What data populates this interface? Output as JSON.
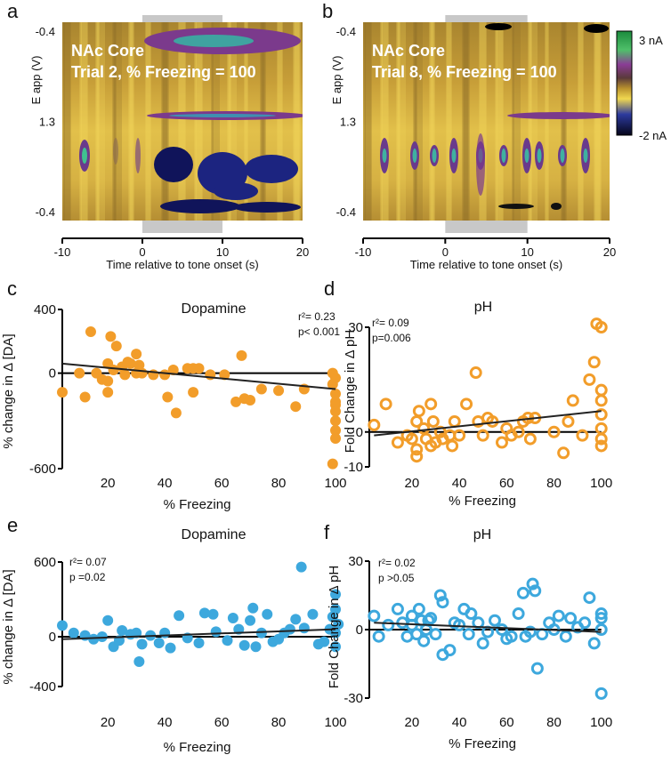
{
  "chart_data": [
    {
      "type": "heatmap",
      "panel": "a",
      "title_lines": [
        "NAc Core",
        "Trial 2, % Freezing = 100"
      ],
      "ylabel": "E app (V)",
      "ytick_labels": [
        "-0.4",
        "1.3",
        "-0.4"
      ],
      "xlabel": "Time relative to tone onset (s)",
      "xlim": [
        -10,
        20
      ],
      "xticks": [
        -10,
        0,
        10,
        20
      ],
      "tone": [
        0,
        10
      ]
    },
    {
      "type": "heatmap",
      "panel": "b",
      "title_lines": [
        "NAc Core",
        "Trial 8, % Freezing = 100"
      ],
      "ylabel": "E app (V)",
      "ytick_labels": [
        "-0.4",
        "1.3",
        "-0.4"
      ],
      "xlabel": "Time relative to tone onset (s)",
      "xlim": [
        -10,
        20
      ],
      "xticks": [
        -10,
        0,
        10,
        20
      ],
      "tone": [
        0,
        10
      ],
      "colorbar_labels": [
        "3 nA",
        "-2 nA"
      ]
    },
    {
      "type": "scatter",
      "panel": "c",
      "title": "Dopamine",
      "stats": [
        "r²= 0.23",
        "p< 0.001"
      ],
      "ylabel": "% change in Δ [DA]",
      "xlabel": "% Freezing",
      "color": "#f29d2a",
      "marker": "filled",
      "xlim": [
        4,
        105
      ],
      "ylim": [
        -600,
        400
      ],
      "xticks": [
        20,
        40,
        60,
        80,
        100
      ],
      "yticks": [
        -600,
        0,
        400
      ],
      "x": [
        4,
        10,
        12,
        14,
        16,
        18,
        20,
        20,
        20,
        21,
        22,
        23,
        25,
        26,
        27,
        28,
        30,
        30,
        31,
        32,
        36,
        40,
        41,
        43,
        44,
        48,
        50,
        50,
        52,
        56,
        61,
        65,
        67,
        68,
        70,
        74,
        80,
        86,
        89,
        99,
        99,
        100,
        100,
        100,
        100,
        100,
        100,
        100,
        100,
        99
      ],
      "values": [
        -120,
        0,
        -150,
        260,
        0,
        -40,
        -50,
        -120,
        60,
        230,
        20,
        170,
        40,
        -10,
        70,
        60,
        0,
        120,
        50,
        0,
        -10,
        -10,
        -150,
        20,
        -250,
        30,
        30,
        -120,
        30,
        -10,
        -10,
        -180,
        110,
        -160,
        -170,
        -100,
        -110,
        -210,
        -100,
        0,
        -70,
        -30,
        -130,
        -180,
        -200,
        -240,
        -300,
        -360,
        -410,
        -570
      ],
      "fit": {
        "x": [
          4,
          100
        ],
        "y": [
          60,
          -100
        ]
      }
    },
    {
      "type": "scatter",
      "panel": "d",
      "title": "pH",
      "stats": [
        "r²= 0.09",
        "p=0.006"
      ],
      "ylabel": "Fold Change in Δ pH",
      "xlabel": "% Freezing",
      "color": "#f29d2a",
      "marker": "open",
      "xlim": [
        2,
        105
      ],
      "ylim": [
        -10,
        30
      ],
      "xticks": [
        20,
        40,
        60,
        80,
        100
      ],
      "yticks": [
        -10,
        0,
        30
      ],
      "x": [
        4,
        9,
        14,
        18,
        20,
        22,
        22,
        22,
        23,
        25,
        26,
        28,
        28,
        29,
        30,
        32,
        33,
        36,
        37,
        38,
        40,
        43,
        47,
        48,
        50,
        52,
        54,
        58,
        60,
        62,
        65,
        67,
        69,
        70,
        72,
        80,
        84,
        86,
        88,
        92,
        95,
        97,
        98,
        100,
        100,
        100,
        100,
        100,
        100,
        100
      ],
      "values": [
        2,
        8,
        -3,
        -1,
        -2,
        -5,
        -7,
        3,
        6,
        1,
        -2,
        -4,
        8,
        3,
        -3,
        0,
        -2,
        -1,
        -4,
        3,
        -1,
        8,
        17,
        3,
        -1,
        4,
        3,
        -3,
        1,
        -1,
        0,
        3,
        4,
        -2,
        4,
        0,
        -6,
        3,
        9,
        -1,
        15,
        20,
        31,
        30,
        12,
        9,
        5,
        1,
        -2,
        -4
      ],
      "fit": {
        "x": [
          4,
          100
        ],
        "y": [
          -1,
          6
        ]
      }
    },
    {
      "type": "scatter",
      "panel": "e",
      "title": "Dopamine",
      "stats": [
        "r²= 0.07",
        "p =0.02"
      ],
      "ylabel": "% change in Δ [DA]",
      "xlabel": "% Freezing",
      "color": "#3da8dd",
      "marker": "filled",
      "xlim": [
        4,
        105
      ],
      "ylim": [
        -400,
        600
      ],
      "xticks": [
        20,
        40,
        60,
        80,
        100
      ],
      "yticks": [
        -400,
        0,
        600
      ],
      "x": [
        4,
        8,
        12,
        15,
        18,
        20,
        22,
        24,
        25,
        28,
        30,
        31,
        32,
        35,
        38,
        40,
        42,
        45,
        48,
        52,
        54,
        57,
        58,
        62,
        64,
        66,
        68,
        70,
        71,
        72,
        74,
        76,
        78,
        80,
        82,
        84,
        86,
        88,
        89,
        92,
        94,
        96,
        98,
        99,
        100,
        100,
        100,
        100,
        101
      ],
      "values": [
        90,
        30,
        10,
        -20,
        0,
        130,
        -80,
        -30,
        50,
        20,
        30,
        -200,
        -60,
        10,
        -50,
        30,
        -90,
        170,
        -10,
        -50,
        190,
        180,
        40,
        -30,
        150,
        60,
        -70,
        130,
        230,
        -80,
        30,
        180,
        -40,
        -20,
        30,
        60,
        140,
        560,
        70,
        180,
        -60,
        -40,
        60,
        160,
        340,
        220,
        30,
        -80,
        100
      ],
      "fit": {
        "x": [
          4,
          100
        ],
        "y": [
          -20,
          60
        ]
      }
    },
    {
      "type": "scatter",
      "panel": "f",
      "title": "pH",
      "stats": [
        "r²= 0.02",
        "p >0.05"
      ],
      "ylabel": "Fold Change in Δ pH",
      "xlabel": "% Freezing",
      "color": "#3da8dd",
      "marker": "open",
      "xlim": [
        2,
        105
      ],
      "ylim": [
        -30,
        30
      ],
      "xticks": [
        20,
        40,
        60,
        80,
        100
      ],
      "yticks": [
        -30,
        0,
        30
      ],
      "x": [
        4,
        6,
        10,
        14,
        16,
        18,
        20,
        20,
        22,
        23,
        24,
        25,
        26,
        27,
        28,
        30,
        32,
        33,
        33,
        36,
        38,
        40,
        42,
        44,
        45,
        48,
        50,
        52,
        55,
        58,
        60,
        62,
        65,
        67,
        68,
        70,
        71,
        72,
        73,
        75,
        78,
        80,
        82,
        85,
        87,
        90,
        93,
        95,
        97,
        100,
        100,
        100,
        100
      ],
      "values": [
        6,
        -3,
        2,
        9,
        3,
        -3,
        6,
        2,
        -2,
        9,
        4,
        -5,
        0,
        4,
        5,
        -2,
        15,
        12,
        -11,
        -9,
        3,
        2,
        9,
        -2,
        7,
        3,
        -6,
        -1,
        4,
        0,
        -4,
        -3,
        7,
        16,
        -3,
        -1,
        20,
        17,
        -17,
        -2,
        3,
        0,
        6,
        -3,
        5,
        1,
        3,
        14,
        -6,
        7,
        5,
        -28,
        0
      ],
      "fit": {
        "x": [
          4,
          100
        ],
        "y": [
          3,
          -1
        ]
      }
    }
  ]
}
